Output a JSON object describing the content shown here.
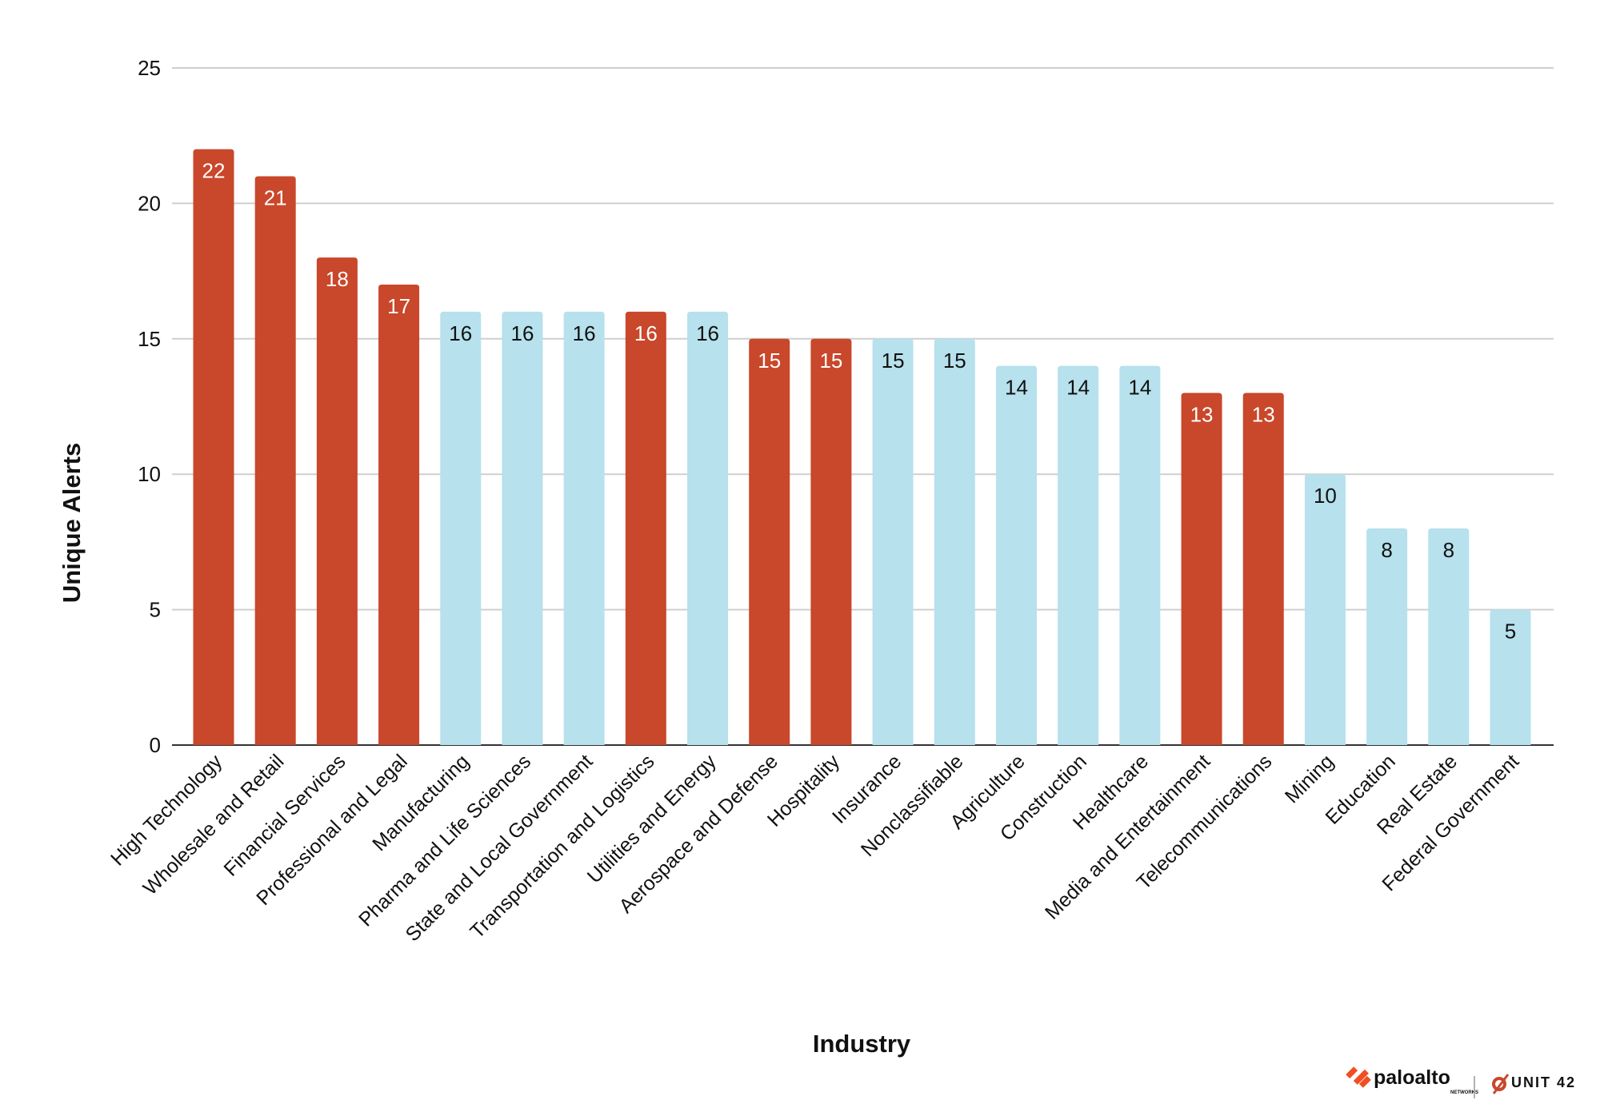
{
  "chart_data": {
    "type": "bar",
    "title": "",
    "xlabel": "Industry",
    "ylabel": "Unique Alerts",
    "ylim": [
      0,
      25
    ],
    "yticks": [
      0,
      5,
      10,
      15,
      20,
      25
    ],
    "grid": true,
    "legend": "none",
    "categories": [
      "High Technology",
      "Wholesale and Retail",
      "Financial Services",
      "Professional and Legal",
      "Manufacturing",
      "Pharma and Life Sciences",
      "State and Local Government",
      "Transportation and Logistics",
      "Utilities and Energy",
      "Aerospace and Defense",
      "Hospitality",
      "Insurance",
      "Nonclassifiable",
      "Agriculture",
      "Construction",
      "Healthcare",
      "Media and Entertainment",
      "Telecommunications",
      "Mining",
      "Education",
      "Real Estate",
      "Federal Government"
    ],
    "values": [
      22,
      21,
      18,
      17,
      16,
      16,
      16,
      16,
      16,
      15,
      15,
      15,
      15,
      14,
      14,
      14,
      13,
      13,
      10,
      8,
      8,
      5
    ],
    "highlighted": [
      true,
      true,
      true,
      true,
      false,
      false,
      false,
      true,
      false,
      true,
      true,
      false,
      false,
      false,
      false,
      false,
      true,
      true,
      false,
      false,
      false,
      false
    ],
    "colors": {
      "highlight": "#C9472A",
      "default": "#B6E1ED",
      "label_on_highlight": "#FFFFFF",
      "label_on_default": "#111111"
    }
  },
  "logos": {
    "brand": "paloalto NETWORKS",
    "unit": "UNIT 42 BY PALO ALTO NETWORKS"
  }
}
